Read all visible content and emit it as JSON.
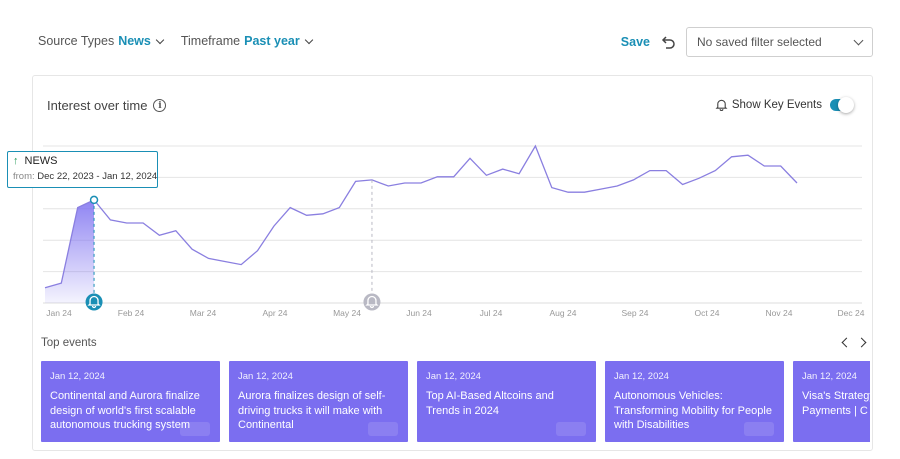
{
  "filters": [
    {
      "label": "Source Types",
      "value": "News"
    },
    {
      "label": "Timeframe",
      "value": "Past year"
    }
  ],
  "save": {
    "label": "Save",
    "select_value": "No saved filter selected"
  },
  "panel": {
    "title": "Interest over time",
    "key_events_label": "Show Key Events",
    "key_events_on": true
  },
  "tooltip": {
    "series": "NEWS",
    "from_label": "from:",
    "range": "Dec 22, 2023 - Jan 12, 2024"
  },
  "chart_data": {
    "type": "line",
    "x_ticks": [
      "Jan 24",
      "Feb 24",
      "Mar 24",
      "Apr 24",
      "May 24",
      "Jun 24",
      "Jul 24",
      "Aug 24",
      "Sep 24",
      "Oct 24",
      "Nov 24",
      "Dec 24"
    ],
    "values": [
      8,
      11,
      60,
      65,
      52,
      50,
      50,
      42,
      45,
      33,
      27,
      25,
      23,
      32,
      48,
      60,
      55,
      56,
      60,
      77,
      78,
      74,
      76,
      76,
      80,
      80,
      92,
      81,
      85,
      82,
      100,
      73,
      70,
      70,
      72,
      74,
      78,
      84,
      84,
      75,
      79,
      84,
      93,
      94,
      87,
      87,
      76
    ],
    "yrange": [
      0,
      100
    ],
    "highlight_range": [
      0,
      3
    ],
    "key_events": [
      3,
      20
    ],
    "grid": true
  },
  "top_events": {
    "label": "Top events",
    "cards": [
      {
        "date": "Jan 12, 2024",
        "headline": "Continental and Aurora finalize design of world's first scalable autonomous trucking system"
      },
      {
        "date": "Jan 12, 2024",
        "headline": "Aurora finalizes design of self-driving trucks it will make with Continental"
      },
      {
        "date": "Jan 12, 2024",
        "headline": "Top AI-Based Altcoins and Trends in 2024"
      },
      {
        "date": "Jan 12, 2024",
        "headline": "Autonomous Vehicles: Transforming Mobility for People with Disabilities"
      },
      {
        "date": "Jan 12, 2024",
        "headline": "Visa's Strategy Unveiling the Payments | C"
      }
    ]
  },
  "colors": {
    "accent": "#1a8fb5",
    "line": "#8a7fe0",
    "card": "#7b6ef0",
    "key_event_active": "#1a8fb5",
    "key_event_inactive": "#b9b9c4"
  }
}
